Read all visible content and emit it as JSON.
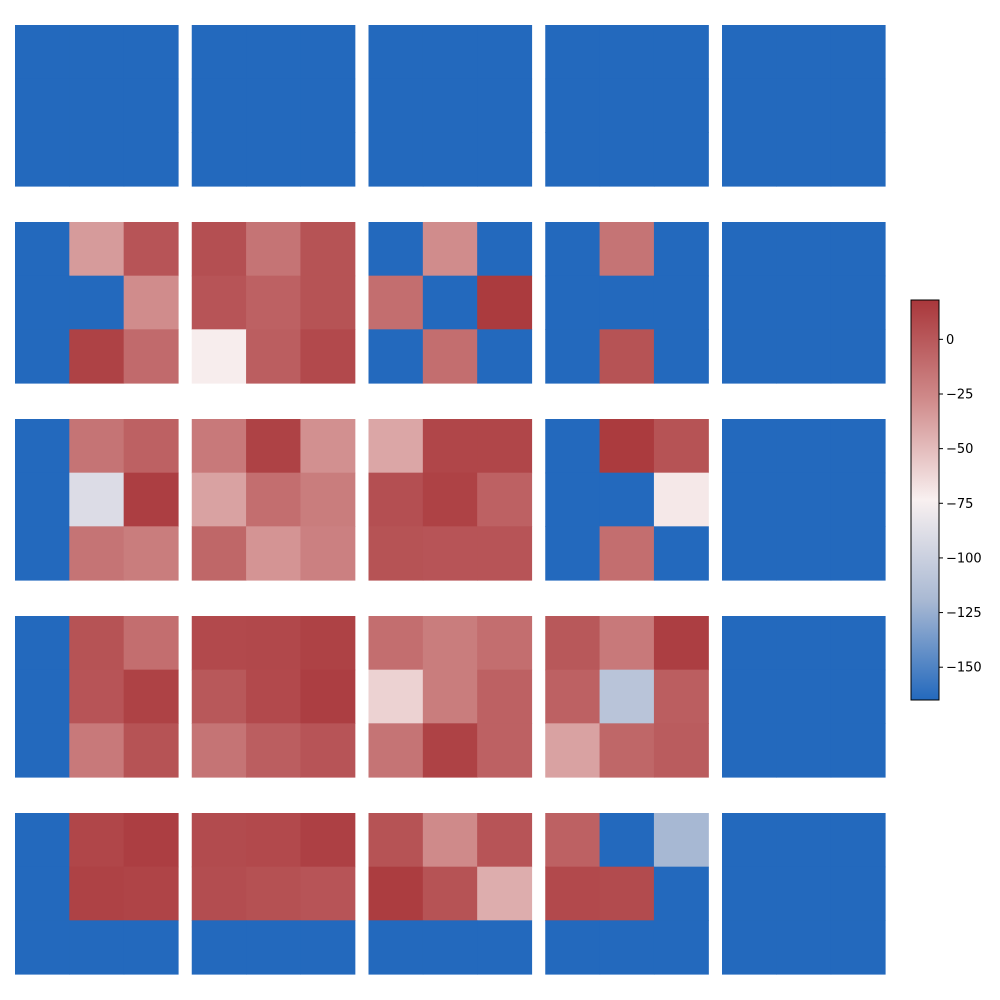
{
  "chart_data": {
    "type": "heatmap",
    "title": "",
    "layout": "5x5 grid of 3x3 heatmap panels",
    "grid_rows": 5,
    "grid_cols": 5,
    "cell_rows": 3,
    "cell_cols": 3,
    "colormap": "vlag",
    "colormap_stops": [
      "#2369bd",
      "#a9b9d3",
      "#f8f0f0",
      "#d08b8b",
      "#a9373b"
    ],
    "vmin": -165,
    "vmax": 18,
    "colorbar": {
      "ticks": [
        0,
        -25,
        -50,
        -75,
        -100,
        -125,
        -150
      ],
      "tick_labels": [
        "0",
        "−25",
        "−50",
        "−75",
        "−100",
        "−125",
        "−150"
      ]
    },
    "panels": [
      [
        [
          [
            -165,
            -165,
            -165
          ],
          [
            -165,
            -165,
            -165
          ],
          [
            -165,
            -165,
            -165
          ]
        ],
        [
          [
            -165,
            -165,
            -165
          ],
          [
            -165,
            -165,
            -165
          ],
          [
            -165,
            -165,
            -165
          ]
        ],
        [
          [
            -165,
            -165,
            -165
          ],
          [
            -165,
            -165,
            -165
          ],
          [
            -165,
            -165,
            -165
          ]
        ],
        [
          [
            -165,
            -165,
            -165
          ],
          [
            -165,
            -165,
            -165
          ],
          [
            -165,
            -165,
            -165
          ]
        ],
        [
          [
            -165,
            -165,
            -165
          ],
          [
            -165,
            -165,
            -165
          ],
          [
            -165,
            -165,
            -165
          ]
        ]
      ],
      [
        [
          [
            -165,
            -35,
            2
          ],
          [
            -165,
            -165,
            -28
          ],
          [
            -165,
            12,
            -10
          ]
        ],
        [
          [
            5,
            -15,
            3
          ],
          [
            2,
            -5,
            3
          ],
          [
            -72,
            -3,
            8
          ]
        ],
        [
          [
            -165,
            -28,
            -165
          ],
          [
            -12,
            -165,
            16
          ],
          [
            -165,
            -12,
            -165
          ]
        ],
        [
          [
            -165,
            -15,
            -165
          ],
          [
            -165,
            -165,
            -165
          ],
          [
            -165,
            3,
            -165
          ]
        ],
        [
          [
            -165,
            -165,
            -165
          ],
          [
            -165,
            -165,
            -165
          ],
          [
            -165,
            -165,
            -165
          ]
        ]
      ],
      [
        [
          [
            -165,
            -15,
            -5
          ],
          [
            -165,
            -90,
            14
          ],
          [
            -165,
            -15,
            -20
          ]
        ],
        [
          [
            -18,
            12,
            -30
          ],
          [
            -38,
            -12,
            -20
          ],
          [
            -8,
            -32,
            -22
          ]
        ],
        [
          [
            -40,
            10,
            10
          ],
          [
            5,
            12,
            -5
          ],
          [
            3,
            2,
            2
          ]
        ],
        [
          [
            -165,
            16,
            3
          ],
          [
            -165,
            -165,
            -70
          ],
          [
            -165,
            -12,
            -165
          ]
        ],
        [
          [
            -165,
            -165,
            -165
          ],
          [
            -165,
            -165,
            -165
          ],
          [
            -165,
            -165,
            -165
          ]
        ]
      ],
      [
        [
          [
            -165,
            3,
            -12
          ],
          [
            -165,
            2,
            12
          ],
          [
            -165,
            -18,
            3
          ]
        ],
        [
          [
            8,
            9,
            12
          ],
          [
            0,
            8,
            14
          ],
          [
            -15,
            -3,
            2
          ]
        ],
        [
          [
            -12,
            -20,
            -12
          ],
          [
            -60,
            -20,
            -5
          ],
          [
            -15,
            12,
            -5
          ]
        ],
        [
          [
            0,
            -18,
            14
          ],
          [
            -5,
            -110,
            -3
          ],
          [
            -38,
            -8,
            -2
          ]
        ],
        [
          [
            -165,
            -165,
            -165
          ],
          [
            -165,
            -165,
            -165
          ],
          [
            -165,
            -165,
            -165
          ]
        ]
      ],
      [
        [
          [
            -165,
            10,
            14
          ],
          [
            -165,
            12,
            11
          ],
          [
            -165,
            -165,
            -165
          ]
        ],
        [
          [
            7,
            8,
            13
          ],
          [
            6,
            4,
            2
          ],
          [
            -165,
            -165,
            -165
          ]
        ],
        [
          [
            3,
            -27,
            2
          ],
          [
            15,
            3,
            -43
          ],
          [
            -165,
            -165,
            -165
          ]
        ],
        [
          [
            -5,
            -165,
            -120
          ],
          [
            8,
            7,
            -165
          ],
          [
            -165,
            -165,
            -165
          ]
        ],
        [
          [
            -165,
            -165,
            -165
          ],
          [
            -165,
            -165,
            -165
          ],
          [
            -165,
            -165,
            -165
          ]
        ]
      ]
    ]
  }
}
